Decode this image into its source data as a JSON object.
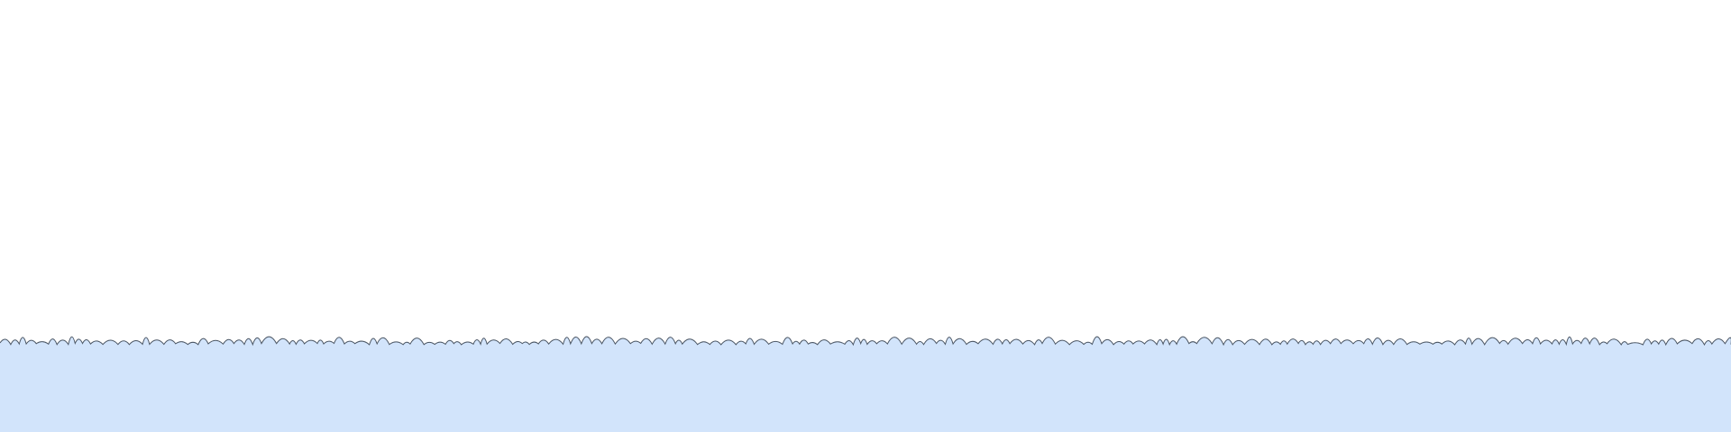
{
  "scene": {
    "background_color": "#ffffff",
    "ground": {
      "fill_color": "#d2e4fb",
      "edge_stroke_color": "#4a5563",
      "edge_style": "scalloped"
    }
  }
}
